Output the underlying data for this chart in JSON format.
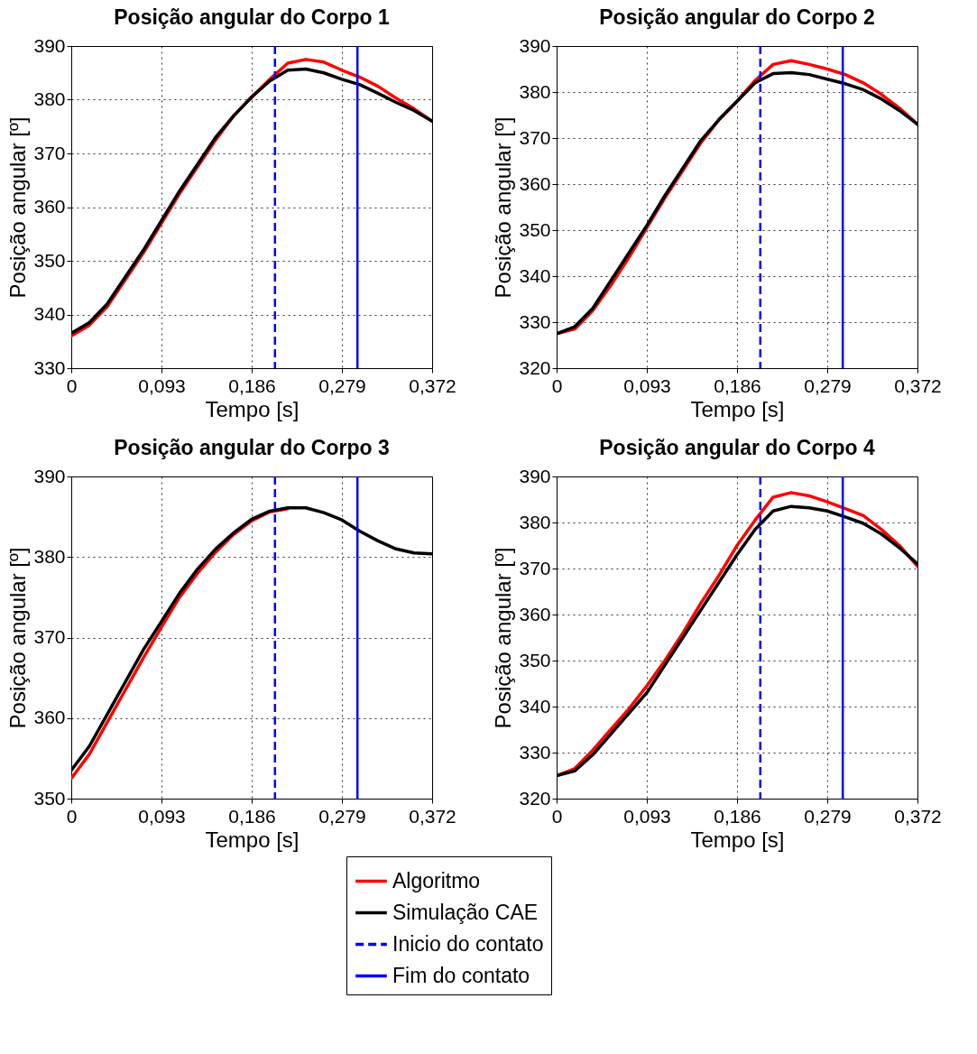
{
  "chart_data": [
    {
      "type": "line",
      "title": "Posição angular do Corpo 1",
      "xlabel": "Tempo [s]",
      "ylabel": "Posição angular [º]",
      "x": [
        0,
        0.0186,
        0.0372,
        0.0558,
        0.0744,
        0.093,
        0.1116,
        0.1302,
        0.1488,
        0.1674,
        0.186,
        0.2046,
        0.2232,
        0.2418,
        0.2604,
        0.279,
        0.2976,
        0.3162,
        0.3348,
        0.3534,
        0.372
      ],
      "series": [
        {
          "name": "Algoritmo",
          "color": "#ff0000",
          "values": [
            336,
            338,
            341.5,
            346.5,
            351.5,
            357,
            362.5,
            367.5,
            372.5,
            377,
            380.5,
            383.8,
            386.8,
            387.5,
            387,
            385.5,
            384.2,
            382.5,
            380.3,
            378.3,
            376
          ]
        },
        {
          "name": "Simulação CAE",
          "color": "#000000",
          "values": [
            336.5,
            338.5,
            342,
            347,
            352,
            357.5,
            363,
            368,
            373,
            377,
            380.5,
            383.5,
            385.5,
            385.7,
            385,
            383.8,
            382.8,
            381.2,
            379.5,
            378,
            376
          ]
        }
      ],
      "ref_lines": [
        {
          "axis": "x",
          "value": 0.21,
          "label": "Inicio do contato",
          "color": "#0000ff",
          "line_style": "dashed"
        },
        {
          "axis": "x",
          "value": 0.295,
          "label": "Fim do contato",
          "color": "#0000ff",
          "line_style": "solid"
        }
      ],
      "xlim": [
        0,
        0.372
      ],
      "xticks": [
        {
          "value": 0,
          "label": "0"
        },
        {
          "value": 0.093,
          "label": "0,093"
        },
        {
          "value": 0.186,
          "label": "0,186"
        },
        {
          "value": 0.279,
          "label": "0,279"
        },
        {
          "value": 0.372,
          "label": "0,372"
        }
      ],
      "ylim": [
        330,
        390
      ],
      "yticks": [
        330,
        340,
        350,
        360,
        370,
        380,
        390
      ],
      "grid": true,
      "line_style": "solid",
      "legend": "bottom"
    },
    {
      "type": "line",
      "title": "Posição angular do Corpo 2",
      "xlabel": "Tempo [s]",
      "ylabel": "Posição angular [º]",
      "x": [
        0,
        0.0186,
        0.0372,
        0.0558,
        0.0744,
        0.093,
        0.1116,
        0.1302,
        0.1488,
        0.1674,
        0.186,
        0.2046,
        0.2232,
        0.2418,
        0.2604,
        0.279,
        0.2976,
        0.3162,
        0.3348,
        0.3534,
        0.372
      ],
      "series": [
        {
          "name": "Algoritmo",
          "color": "#ff0000",
          "values": [
            327.5,
            328.5,
            332.5,
            338,
            344,
            350.5,
            357,
            363,
            369,
            374,
            378,
            382.5,
            386,
            386.8,
            386,
            385,
            383.8,
            382,
            379.5,
            376.5,
            373
          ]
        },
        {
          "name": "Simulação CAE",
          "color": "#000000",
          "values": [
            327.5,
            329,
            333,
            339,
            345,
            351,
            357.5,
            363.5,
            369.5,
            374,
            378,
            382,
            384,
            384.2,
            383.8,
            382.8,
            381.8,
            380.5,
            378.5,
            376,
            373
          ]
        }
      ],
      "ref_lines": [
        {
          "axis": "x",
          "value": 0.21,
          "color": "#0000ff",
          "line_style": "dashed"
        },
        {
          "axis": "x",
          "value": 0.295,
          "color": "#0000ff",
          "line_style": "solid"
        }
      ],
      "xlim": [
        0,
        0.372
      ],
      "xticks": [
        0,
        {
          "value": 0.093,
          "label": "0,093"
        },
        {
          "value": 0.186,
          "label": "0,186"
        },
        {
          "value": 0.279,
          "label": "0,279"
        },
        {
          "value": 0.372,
          "label": "0,372"
        }
      ],
      "ylim": [
        320,
        390
      ],
      "yticks": [
        320,
        330,
        340,
        350,
        360,
        370,
        380,
        390
      ],
      "grid": true,
      "line_style": "solid",
      "legend": "bottom"
    },
    {
      "type": "line",
      "title": "Posição angular do Corpo 3",
      "xlabel": "Tempo [s]",
      "ylabel": "Posição angular [º]",
      "x": [
        0,
        0.0186,
        0.0372,
        0.0558,
        0.0744,
        0.093,
        0.1116,
        0.1302,
        0.1488,
        0.1674,
        0.186,
        0.2046,
        0.2232,
        0.2418,
        0.2604,
        0.279,
        0.2976,
        0.3162,
        0.3348,
        0.3534,
        0.372
      ],
      "series": [
        {
          "name": "Algoritmo",
          "color": "#ff0000",
          "values": [
            352.5,
            355.5,
            359.5,
            363.5,
            367.5,
            371.3,
            375,
            378,
            380.6,
            382.8,
            384.5,
            385.6,
            386,
            null,
            null,
            null,
            null,
            null,
            null,
            null,
            null
          ]
        },
        {
          "name": "Simulação CAE",
          "color": "#000000",
          "values": [
            353.5,
            356.5,
            360.5,
            364.5,
            368.5,
            372,
            375.5,
            378.5,
            381,
            383,
            384.7,
            385.7,
            386.1,
            386.1,
            385.5,
            384.6,
            383.2,
            382,
            381,
            380.5,
            380.4
          ]
        }
      ],
      "ref_lines": [
        {
          "axis": "x",
          "value": 0.21,
          "color": "#0000ff",
          "line_style": "dashed"
        },
        {
          "axis": "x",
          "value": 0.295,
          "color": "#0000ff",
          "line_style": "solid"
        }
      ],
      "xlim": [
        0,
        0.372
      ],
      "xticks": [
        {
          "value": 0,
          "label": "0"
        },
        {
          "value": 0.093,
          "label": "0,093"
        },
        {
          "value": 0.186,
          "label": "0,186"
        },
        {
          "value": 0.279,
          "label": "0,279"
        },
        {
          "value": 0.372,
          "label": "0,372"
        }
      ],
      "ylim": [
        350,
        390
      ],
      "yticks": [
        350,
        360,
        370,
        380,
        390
      ],
      "grid": true,
      "line_style": "solid",
      "legend": "bottom"
    },
    {
      "type": "line",
      "title": "Posição angular do Corpo 4",
      "xlabel": "Tempo [s]",
      "ylabel": "Posição angular [º]",
      "x": [
        0,
        0.0186,
        0.0372,
        0.0558,
        0.0744,
        0.093,
        0.1116,
        0.1302,
        0.1488,
        0.1674,
        0.186,
        0.2046,
        0.2232,
        0.2418,
        0.2604,
        0.279,
        0.2976,
        0.3162,
        0.3348,
        0.3534,
        0.372
      ],
      "series": [
        {
          "name": "Algoritmo",
          "color": "#ff0000",
          "values": [
            325,
            326.5,
            330.5,
            335,
            339.5,
            344.5,
            350,
            356,
            362.5,
            368.5,
            375,
            380.5,
            385.5,
            386.5,
            385.8,
            384.5,
            383,
            381.5,
            378.5,
            375,
            370.5
          ]
        },
        {
          "name": "Simulação CAE",
          "color": "#000000",
          "values": [
            325,
            326,
            329.5,
            334,
            338.5,
            343,
            349,
            355,
            361,
            367,
            373,
            378.5,
            382.5,
            383.5,
            383.2,
            382.5,
            381.2,
            379.8,
            377.5,
            374.5,
            371
          ]
        }
      ],
      "ref_lines": [
        {
          "axis": "x",
          "value": 0.21,
          "color": "#0000ff",
          "line_style": "dashed"
        },
        {
          "axis": "x",
          "value": 0.295,
          "color": "#0000ff",
          "line_style": "solid"
        }
      ],
      "xlim": [
        0,
        0.372
      ],
      "xticks": [
        0,
        {
          "value": 0.093,
          "label": "0,093"
        },
        {
          "value": 0.186,
          "label": "0,186"
        },
        {
          "value": 0.279,
          "label": "0,279"
        },
        {
          "value": 0.372,
          "label": "0,372"
        }
      ],
      "ylim": [
        320,
        390
      ],
      "yticks": [
        320,
        330,
        340,
        350,
        360,
        370,
        380,
        390
      ],
      "grid": true,
      "line_style": "solid",
      "legend": "bottom"
    }
  ]
}
